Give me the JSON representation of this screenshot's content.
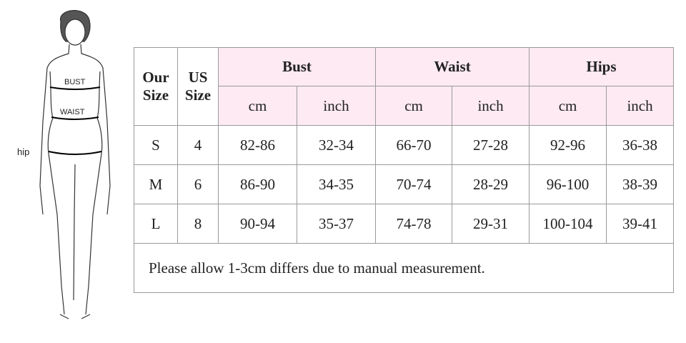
{
  "figure": {
    "labels": [
      "BUST",
      "WAIST",
      "hip"
    ]
  },
  "table": {
    "headers": [
      "Our Size",
      "US Size",
      "Bust",
      "Waist",
      "Hips"
    ],
    "units": [
      "cm",
      "inch",
      "cm",
      "inch",
      "cm",
      "inch"
    ],
    "rows": [
      [
        "S",
        "4",
        "82-86",
        "32-34",
        "66-70",
        "27-28",
        "92-96",
        "36-38"
      ],
      [
        "M",
        "6",
        "86-90",
        "34-35",
        "70-74",
        "28-29",
        "96-100",
        "38-39"
      ],
      [
        "L",
        "8",
        "90-94",
        "35-37",
        "74-78",
        "29-31",
        "100-104",
        "39-41"
      ]
    ],
    "note": "Please allow 1-3cm differs due to manual measurement."
  }
}
